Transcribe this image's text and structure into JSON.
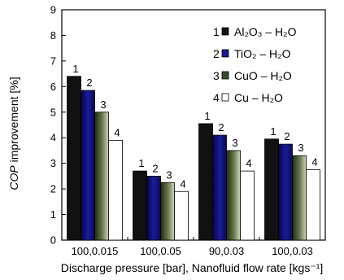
{
  "chart_data": {
    "type": "bar",
    "xlabel": "Discharge pressure [bar], Nanofluid flow rate [kgs⁻¹]",
    "ylabel": "COP improvement [%]",
    "ylim": [
      0,
      9
    ],
    "yticks": [
      0,
      1,
      2,
      3,
      4,
      5,
      6,
      7,
      8,
      9
    ],
    "categories": [
      "100,0.015",
      "100,0.05",
      "90,0.03",
      "100,0.03"
    ],
    "legend_position": "top-right",
    "series": [
      {
        "number": "1",
        "name": "Al₂O₃ – H₂O",
        "values": [
          6.4,
          2.7,
          4.55,
          3.95
        ],
        "color": "#111111",
        "gradient": false
      },
      {
        "number": "2",
        "name": "TiO₂  – H₂O",
        "values": [
          5.85,
          2.5,
          4.1,
          3.75
        ],
        "color": "#1a1a8c",
        "gradient": true
      },
      {
        "number": "3",
        "name": "CuO  – H₂O",
        "values": [
          5.0,
          2.25,
          3.5,
          3.3
        ],
        "color": "#3a4a2a",
        "gradient": true
      },
      {
        "number": "4",
        "name": "Cu     – H₂O",
        "values": [
          3.9,
          1.9,
          2.7,
          2.75
        ],
        "color": "#ffffff",
        "gradient": false
      }
    ]
  }
}
